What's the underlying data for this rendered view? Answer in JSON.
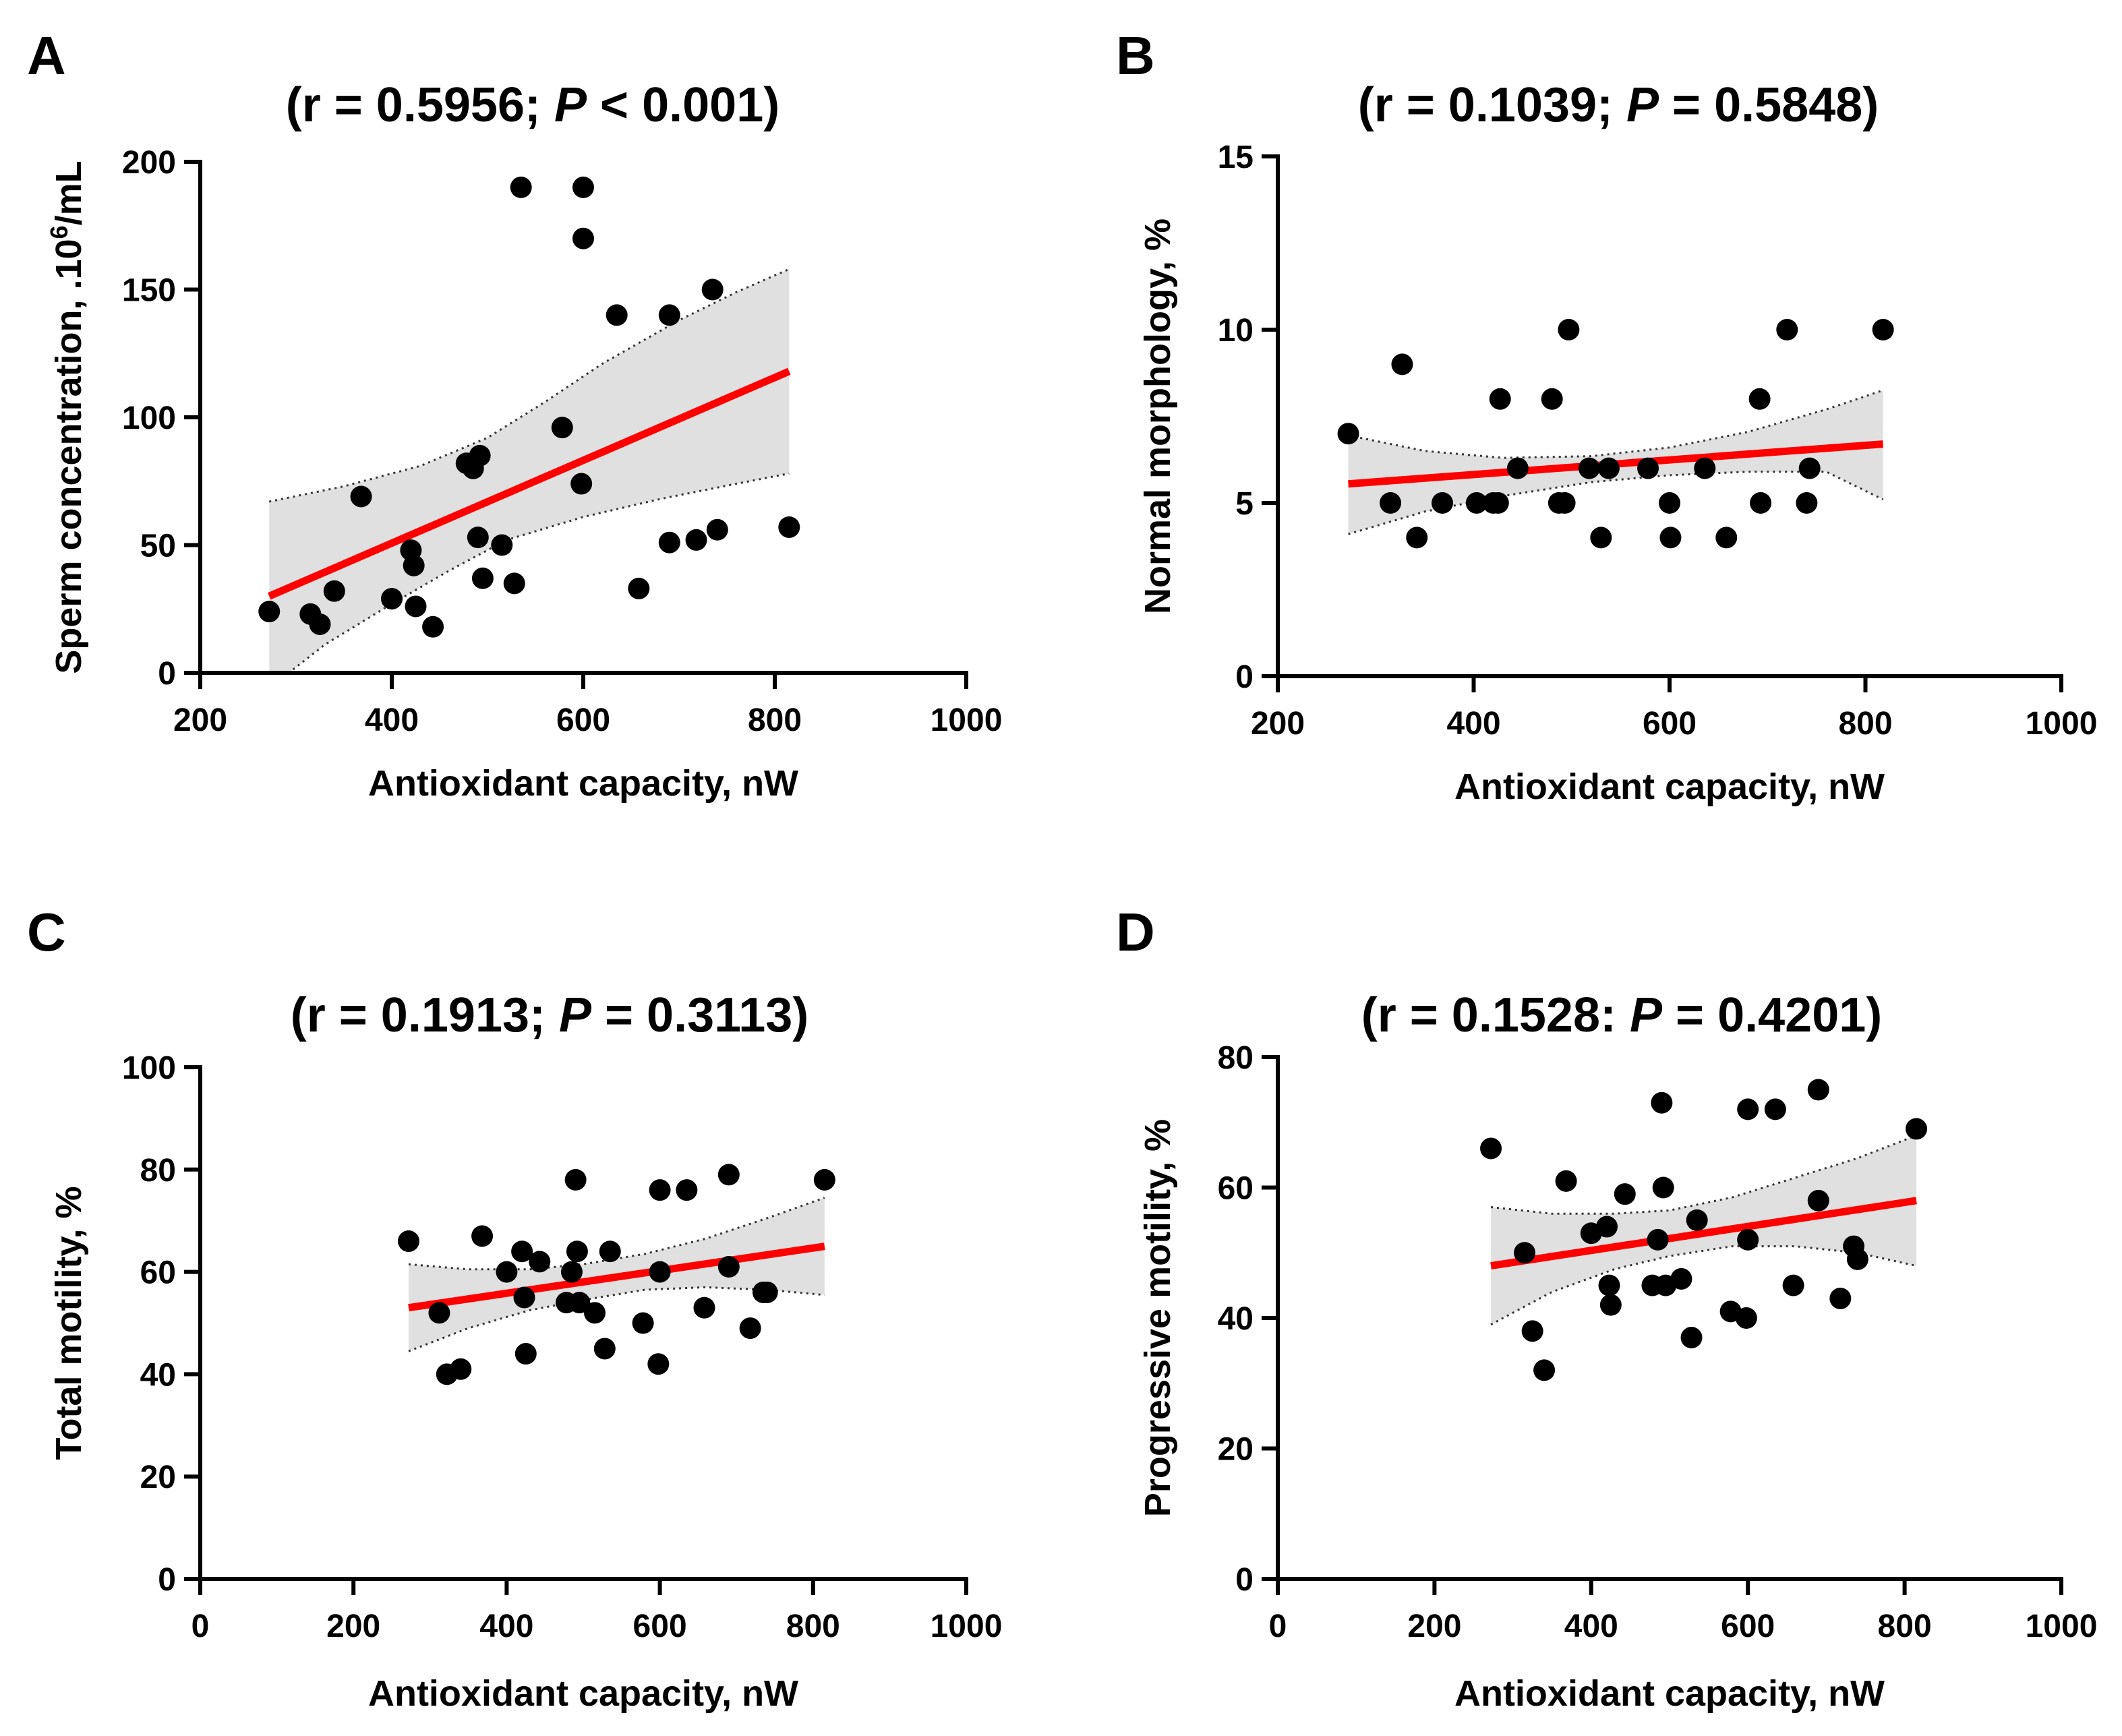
{
  "colors": {
    "regression_line": "#ff0000",
    "confidence_band": "#e0e0e0",
    "points": "#000000",
    "axes": "#000000"
  },
  "chart_data": [
    {
      "panel": "A",
      "type": "scatter",
      "title_prefix": "(r = 0.5956; ",
      "title_p": "P",
      "title_suffix": " < 0.001)",
      "xlabel": "Antioxidant capacity, nW",
      "ylabel_prefix": "Sperm concentration, .10",
      "ylabel_sup": "6",
      "ylabel_suffix": "/mL",
      "xlim": [
        200,
        1000
      ],
      "ylim": [
        0,
        200
      ],
      "xticks": [
        200,
        400,
        600,
        800,
        1000
      ],
      "yticks": [
        0,
        50,
        100,
        150,
        200
      ],
      "points": [
        [
          272,
          24
        ],
        [
          315,
          23
        ],
        [
          325,
          19
        ],
        [
          340,
          32
        ],
        [
          368,
          69
        ],
        [
          400,
          29
        ],
        [
          420,
          48
        ],
        [
          423,
          42
        ],
        [
          425,
          26
        ],
        [
          443,
          18
        ],
        [
          478,
          82
        ],
        [
          485,
          80
        ],
        [
          490,
          53
        ],
        [
          492,
          85
        ],
        [
          495,
          37
        ],
        [
          515,
          50
        ],
        [
          528,
          35
        ],
        [
          535,
          190
        ],
        [
          578,
          96
        ],
        [
          600,
          190
        ],
        [
          600,
          170
        ],
        [
          598,
          74
        ],
        [
          635,
          140
        ],
        [
          658,
          33
        ],
        [
          690,
          140
        ],
        [
          690,
          51
        ],
        [
          718,
          52
        ],
        [
          735,
          150
        ],
        [
          740,
          56
        ],
        [
          815,
          57
        ]
      ],
      "fit": {
        "x": [
          272,
          815
        ],
        "y": [
          30,
          118
        ]
      },
      "ci_upper": [
        [
          272,
          67
        ],
        [
          350,
          73
        ],
        [
          430,
          81
        ],
        [
          500,
          92
        ],
        [
          560,
          106
        ],
        [
          620,
          121
        ],
        [
          700,
          138
        ],
        [
          760,
          149
        ],
        [
          815,
          158
        ]
      ],
      "ci_lower": [
        [
          272,
          -6
        ],
        [
          330,
          11
        ],
        [
          400,
          27
        ],
        [
          460,
          40
        ],
        [
          520,
          52
        ],
        [
          600,
          61
        ],
        [
          680,
          68
        ],
        [
          760,
          74
        ],
        [
          815,
          78
        ]
      ]
    },
    {
      "panel": "B",
      "type": "scatter",
      "title_prefix": "(r = 0.1039; ",
      "title_p": "P",
      "title_suffix": " = 0.5848)",
      "xlabel": "Antioxidant capacity, nW",
      "ylabel_prefix": "Normal morphology, %",
      "ylabel_sup": "",
      "ylabel_suffix": "",
      "xlim": [
        200,
        1000
      ],
      "ylim": [
        0,
        15
      ],
      "xticks": [
        200,
        400,
        600,
        800,
        1000
      ],
      "yticks": [
        0,
        5,
        10,
        15
      ],
      "points": [
        [
          272,
          7
        ],
        [
          315,
          5
        ],
        [
          327,
          9
        ],
        [
          342,
          4
        ],
        [
          368,
          5
        ],
        [
          403,
          5
        ],
        [
          420,
          5
        ],
        [
          425,
          5
        ],
        [
          427,
          8
        ],
        [
          445,
          6
        ],
        [
          480,
          8
        ],
        [
          487,
          5
        ],
        [
          493,
          5
        ],
        [
          497,
          10
        ],
        [
          518,
          6
        ],
        [
          530,
          4
        ],
        [
          538,
          6
        ],
        [
          578,
          6
        ],
        [
          600,
          5
        ],
        [
          601,
          4
        ],
        [
          636,
          6
        ],
        [
          658,
          4
        ],
        [
          692,
          8
        ],
        [
          693,
          5
        ],
        [
          720,
          10
        ],
        [
          740,
          5
        ],
        [
          743,
          6
        ],
        [
          818,
          10
        ]
      ],
      "fit": {
        "x": [
          272,
          818
        ],
        "y": [
          5.55,
          6.7
        ]
      },
      "ci_upper": [
        [
          272,
          6.95
        ],
        [
          350,
          6.5
        ],
        [
          430,
          6.3
        ],
        [
          520,
          6.35
        ],
        [
          600,
          6.6
        ],
        [
          680,
          7.05
        ],
        [
          760,
          7.7
        ],
        [
          818,
          8.25
        ]
      ],
      "ci_lower": [
        [
          272,
          4.1
        ],
        [
          350,
          4.75
        ],
        [
          430,
          5.2
        ],
        [
          520,
          5.6
        ],
        [
          600,
          5.8
        ],
        [
          680,
          5.9
        ],
        [
          760,
          5.9
        ],
        [
          818,
          5.1
        ]
      ]
    },
    {
      "panel": "C",
      "type": "scatter",
      "title_prefix": "(r = 0.1913; ",
      "title_p": "P",
      "title_suffix": " = 0.3113)",
      "xlabel": "Antioxidant capacity,  nW",
      "ylabel_prefix": "Total motility, %",
      "ylabel_sup": "",
      "ylabel_suffix": "",
      "xlim": [
        0,
        1000
      ],
      "ylim": [
        0,
        100
      ],
      "xticks": [
        0,
        200,
        400,
        600,
        800,
        1000
      ],
      "yticks": [
        0,
        20,
        40,
        60,
        80,
        100
      ],
      "points": [
        [
          272,
          66
        ],
        [
          312,
          52
        ],
        [
          322,
          40
        ],
        [
          340,
          41
        ],
        [
          368,
          67
        ],
        [
          400,
          60
        ],
        [
          420,
          64
        ],
        [
          423,
          55
        ],
        [
          425,
          44
        ],
        [
          443,
          62
        ],
        [
          478,
          54
        ],
        [
          485,
          60
        ],
        [
          490,
          78
        ],
        [
          492,
          64
        ],
        [
          495,
          54
        ],
        [
          515,
          52
        ],
        [
          528,
          45
        ],
        [
          535,
          64
        ],
        [
          578,
          50
        ],
        [
          600,
          76
        ],
        [
          600,
          60
        ],
        [
          598,
          42
        ],
        [
          635,
          76
        ],
        [
          658,
          53
        ],
        [
          690,
          79
        ],
        [
          690,
          61
        ],
        [
          718,
          49
        ],
        [
          735,
          56
        ],
        [
          740,
          56
        ],
        [
          815,
          78
        ]
      ],
      "fit": {
        "x": [
          272,
          815
        ],
        "y": [
          53,
          65
        ]
      },
      "ci_upper": [
        [
          272,
          61.5
        ],
        [
          350,
          60.5
        ],
        [
          430,
          60.5
        ],
        [
          500,
          61.5
        ],
        [
          580,
          63.5
        ],
        [
          660,
          66.5
        ],
        [
          740,
          70.5
        ],
        [
          815,
          74.5
        ]
      ],
      "ci_lower": [
        [
          272,
          44.5
        ],
        [
          350,
          49
        ],
        [
          430,
          52.5
        ],
        [
          500,
          54.5
        ],
        [
          580,
          56.5
        ],
        [
          660,
          57
        ],
        [
          740,
          56.5
        ],
        [
          815,
          55.5
        ]
      ]
    },
    {
      "panel": "D",
      "type": "scatter",
      "title_prefix": "(r = 0.1528: ",
      "title_p": "P",
      "title_suffix": " = 0.4201)",
      "xlabel": "Antioxidant capacity, nW",
      "ylabel_prefix": "Progressive motility, %",
      "ylabel_sup": "",
      "ylabel_suffix": "",
      "xlim": [
        0,
        1000
      ],
      "ylim": [
        0,
        80
      ],
      "xticks": [
        0,
        200,
        400,
        600,
        800,
        1000
      ],
      "yticks": [
        0,
        20,
        40,
        60,
        80
      ],
      "points": [
        [
          272,
          66
        ],
        [
          315,
          50
        ],
        [
          325,
          38
        ],
        [
          340,
          32
        ],
        [
          368,
          61
        ],
        [
          400,
          53
        ],
        [
          420,
          54
        ],
        [
          423,
          45
        ],
        [
          425,
          42
        ],
        [
          443,
          59
        ],
        [
          478,
          45
        ],
        [
          485,
          52
        ],
        [
          490,
          73
        ],
        [
          492,
          60
        ],
        [
          495,
          45
        ],
        [
          515,
          46
        ],
        [
          528,
          37
        ],
        [
          535,
          55
        ],
        [
          578,
          41
        ],
        [
          600,
          72
        ],
        [
          600,
          52
        ],
        [
          598,
          40
        ],
        [
          635,
          72
        ],
        [
          658,
          45
        ],
        [
          690,
          75
        ],
        [
          690,
          58
        ],
        [
          718,
          43
        ],
        [
          735,
          51
        ],
        [
          740,
          49
        ],
        [
          815,
          69
        ]
      ],
      "fit": {
        "x": [
          272,
          815
        ],
        "y": [
          48,
          58
        ]
      },
      "ci_upper": [
        [
          272,
          57
        ],
        [
          350,
          56
        ],
        [
          430,
          56
        ],
        [
          500,
          56.5
        ],
        [
          580,
          58.5
        ],
        [
          660,
          61.5
        ],
        [
          740,
          64.5
        ],
        [
          815,
          68
        ]
      ],
      "ci_lower": [
        [
          272,
          39
        ],
        [
          350,
          44
        ],
        [
          430,
          47.5
        ],
        [
          500,
          49.5
        ],
        [
          580,
          51
        ],
        [
          660,
          51
        ],
        [
          740,
          50
        ],
        [
          815,
          48
        ]
      ]
    }
  ]
}
